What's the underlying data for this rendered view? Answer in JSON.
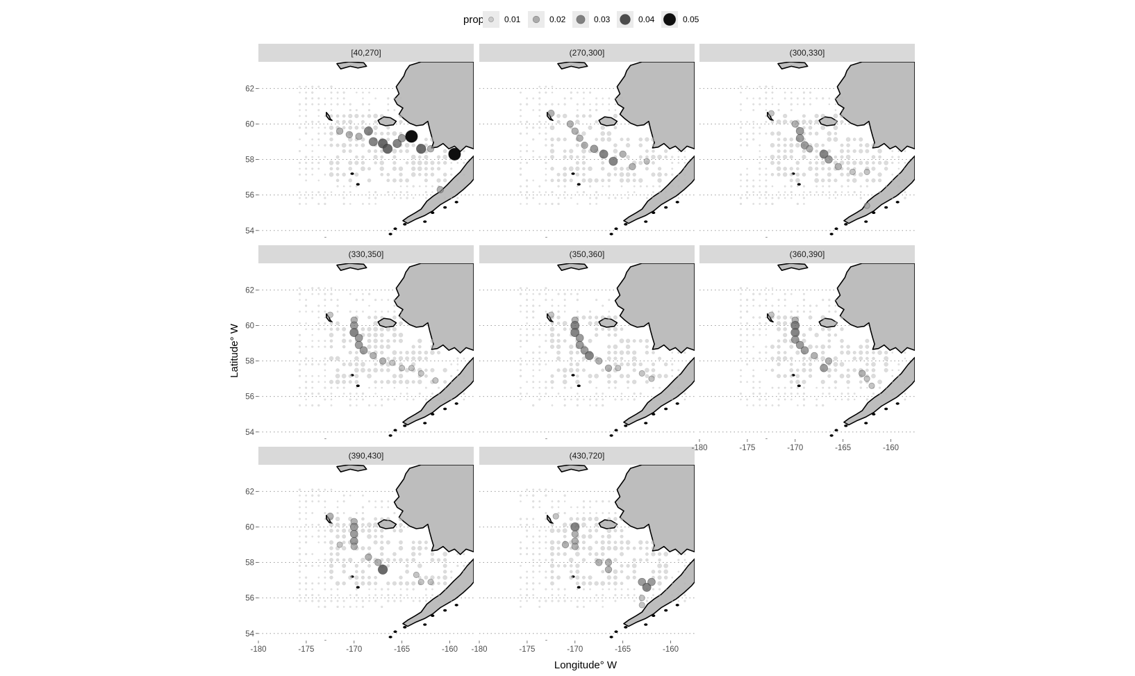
{
  "chart_data": {
    "type": "scatter",
    "subtype": "faceted bubble map",
    "xlabel": "Longitude° W",
    "ylabel": "Latitude° W",
    "x_ticks": [
      -180,
      -175,
      -170,
      -165,
      -160
    ],
    "y_ticks": [
      54,
      56,
      58,
      60,
      62
    ],
    "xlim": [
      -180,
      -157.5
    ],
    "ylim": [
      53.6,
      63.5
    ],
    "grid": "dotted horizontal",
    "legend": {
      "title": "prop",
      "position": "top",
      "values": [
        0.01,
        0.02,
        0.03,
        0.04,
        0.05
      ],
      "labels": [
        "0.01",
        "0.02",
        "0.03",
        "0.04",
        "0.05"
      ]
    },
    "land_color": "#bdbdbd",
    "coast_color": "#000000",
    "facets": [
      {
        "label": "[40,270]",
        "hotspots": [
          {
            "lon": -171.5,
            "lat": 59.6,
            "value": 0.02
          },
          {
            "lon": -170.5,
            "lat": 59.4,
            "value": 0.02
          },
          {
            "lon": -169.5,
            "lat": 59.3,
            "value": 0.02
          },
          {
            "lon": -168.5,
            "lat": 59.6,
            "value": 0.03
          },
          {
            "lon": -168.0,
            "lat": 59.0,
            "value": 0.03
          },
          {
            "lon": -167.0,
            "lat": 58.9,
            "value": 0.035
          },
          {
            "lon": -166.5,
            "lat": 58.6,
            "value": 0.035
          },
          {
            "lon": -165.5,
            "lat": 58.9,
            "value": 0.03
          },
          {
            "lon": -165.0,
            "lat": 59.2,
            "value": 0.025
          },
          {
            "lon": -164.0,
            "lat": 59.3,
            "value": 0.05
          },
          {
            "lon": -163.0,
            "lat": 58.6,
            "value": 0.035
          },
          {
            "lon": -162.0,
            "lat": 58.6,
            "value": 0.02
          },
          {
            "lon": -159.5,
            "lat": 58.3,
            "value": 0.05
          },
          {
            "lon": -161.0,
            "lat": 56.3,
            "value": 0.02
          }
        ]
      },
      {
        "label": "(270,300]",
        "hotspots": [
          {
            "lon": -172.5,
            "lat": 60.6,
            "value": 0.02
          },
          {
            "lon": -170.5,
            "lat": 60.0,
            "value": 0.02
          },
          {
            "lon": -170.0,
            "lat": 59.6,
            "value": 0.02
          },
          {
            "lon": -169.5,
            "lat": 59.2,
            "value": 0.02
          },
          {
            "lon": -169.0,
            "lat": 58.8,
            "value": 0.02
          },
          {
            "lon": -168.0,
            "lat": 58.6,
            "value": 0.025
          },
          {
            "lon": -167.0,
            "lat": 58.3,
            "value": 0.03
          },
          {
            "lon": -166.0,
            "lat": 57.9,
            "value": 0.03
          },
          {
            "lon": -165.0,
            "lat": 58.3,
            "value": 0.02
          },
          {
            "lon": -164.0,
            "lat": 57.6,
            "value": 0.02
          },
          {
            "lon": -162.5,
            "lat": 57.9,
            "value": 0.015
          }
        ]
      },
      {
        "label": "(300,330]",
        "hotspots": [
          {
            "lon": -172.5,
            "lat": 60.6,
            "value": 0.015
          },
          {
            "lon": -170.0,
            "lat": 60.0,
            "value": 0.02
          },
          {
            "lon": -169.5,
            "lat": 59.6,
            "value": 0.025
          },
          {
            "lon": -169.5,
            "lat": 59.2,
            "value": 0.025
          },
          {
            "lon": -169.0,
            "lat": 58.8,
            "value": 0.025
          },
          {
            "lon": -168.5,
            "lat": 58.6,
            "value": 0.02
          },
          {
            "lon": -167.0,
            "lat": 58.3,
            "value": 0.03
          },
          {
            "lon": -166.5,
            "lat": 58.0,
            "value": 0.025
          },
          {
            "lon": -165.5,
            "lat": 57.6,
            "value": 0.02
          },
          {
            "lon": -164.0,
            "lat": 57.3,
            "value": 0.015
          },
          {
            "lon": -162.5,
            "lat": 57.3,
            "value": 0.015
          },
          {
            "lon": -162.5,
            "lat": 55.4,
            "value": 0.015
          }
        ]
      },
      {
        "label": "(330,350]",
        "hotspots": [
          {
            "lon": -172.5,
            "lat": 60.6,
            "value": 0.015
          },
          {
            "lon": -170.0,
            "lat": 60.3,
            "value": 0.02
          },
          {
            "lon": -170.0,
            "lat": 60.0,
            "value": 0.025
          },
          {
            "lon": -170.0,
            "lat": 59.6,
            "value": 0.03
          },
          {
            "lon": -169.5,
            "lat": 59.3,
            "value": 0.025
          },
          {
            "lon": -169.5,
            "lat": 58.9,
            "value": 0.025
          },
          {
            "lon": -169.0,
            "lat": 58.6,
            "value": 0.025
          },
          {
            "lon": -168.0,
            "lat": 58.3,
            "value": 0.02
          },
          {
            "lon": -167.0,
            "lat": 58.0,
            "value": 0.02
          },
          {
            "lon": -166.0,
            "lat": 57.9,
            "value": 0.015
          },
          {
            "lon": -165.0,
            "lat": 57.6,
            "value": 0.015
          },
          {
            "lon": -164.0,
            "lat": 57.6,
            "value": 0.015
          },
          {
            "lon": -163.0,
            "lat": 57.3,
            "value": 0.015
          },
          {
            "lon": -161.5,
            "lat": 56.9,
            "value": 0.015
          }
        ]
      },
      {
        "label": "(350,360]",
        "hotspots": [
          {
            "lon": -172.5,
            "lat": 60.6,
            "value": 0.015
          },
          {
            "lon": -170.0,
            "lat": 60.3,
            "value": 0.02
          },
          {
            "lon": -170.0,
            "lat": 60.0,
            "value": 0.03
          },
          {
            "lon": -170.0,
            "lat": 59.6,
            "value": 0.03
          },
          {
            "lon": -169.5,
            "lat": 59.3,
            "value": 0.025
          },
          {
            "lon": -169.5,
            "lat": 58.9,
            "value": 0.025
          },
          {
            "lon": -169.0,
            "lat": 58.6,
            "value": 0.025
          },
          {
            "lon": -168.5,
            "lat": 58.3,
            "value": 0.03
          },
          {
            "lon": -167.5,
            "lat": 58.0,
            "value": 0.02
          },
          {
            "lon": -166.5,
            "lat": 57.6,
            "value": 0.02
          },
          {
            "lon": -165.5,
            "lat": 57.6,
            "value": 0.015
          },
          {
            "lon": -163.0,
            "lat": 57.3,
            "value": 0.015
          },
          {
            "lon": -162.0,
            "lat": 57.0,
            "value": 0.015
          }
        ]
      },
      {
        "label": "(360,390]",
        "hotspots": [
          {
            "lon": -172.5,
            "lat": 60.6,
            "value": 0.015
          },
          {
            "lon": -170.0,
            "lat": 60.3,
            "value": 0.02
          },
          {
            "lon": -170.0,
            "lat": 60.0,
            "value": 0.03
          },
          {
            "lon": -170.0,
            "lat": 59.6,
            "value": 0.03
          },
          {
            "lon": -170.0,
            "lat": 59.2,
            "value": 0.025
          },
          {
            "lon": -169.5,
            "lat": 58.9,
            "value": 0.025
          },
          {
            "lon": -169.0,
            "lat": 58.6,
            "value": 0.025
          },
          {
            "lon": -168.0,
            "lat": 58.3,
            "value": 0.02
          },
          {
            "lon": -167.0,
            "lat": 57.6,
            "value": 0.025
          },
          {
            "lon": -166.5,
            "lat": 58.0,
            "value": 0.02
          },
          {
            "lon": -163.0,
            "lat": 57.3,
            "value": 0.02
          },
          {
            "lon": -162.5,
            "lat": 57.0,
            "value": 0.015
          },
          {
            "lon": -162.0,
            "lat": 56.6,
            "value": 0.015
          }
        ]
      },
      {
        "label": "(390,430]",
        "hotspots": [
          {
            "lon": -172.5,
            "lat": 60.6,
            "value": 0.02
          },
          {
            "lon": -170.0,
            "lat": 60.3,
            "value": 0.02
          },
          {
            "lon": -170.0,
            "lat": 60.0,
            "value": 0.025
          },
          {
            "lon": -170.0,
            "lat": 59.6,
            "value": 0.025
          },
          {
            "lon": -170.0,
            "lat": 59.2,
            "value": 0.025
          },
          {
            "lon": -170.0,
            "lat": 58.9,
            "value": 0.02
          },
          {
            "lon": -168.5,
            "lat": 58.3,
            "value": 0.02
          },
          {
            "lon": -167.5,
            "lat": 58.0,
            "value": 0.02
          },
          {
            "lon": -167.0,
            "lat": 57.6,
            "value": 0.035
          },
          {
            "lon": -163.5,
            "lat": 57.3,
            "value": 0.015
          },
          {
            "lon": -163.0,
            "lat": 56.9,
            "value": 0.015
          },
          {
            "lon": -162.0,
            "lat": 56.9,
            "value": 0.015
          },
          {
            "lon": -171.5,
            "lat": 59.0,
            "value": 0.015
          }
        ]
      },
      {
        "label": "(430,720]",
        "hotspots": [
          {
            "lon": -170.0,
            "lat": 60.0,
            "value": 0.03
          },
          {
            "lon": -170.0,
            "lat": 59.6,
            "value": 0.02
          },
          {
            "lon": -170.0,
            "lat": 59.2,
            "value": 0.02
          },
          {
            "lon": -170.0,
            "lat": 58.9,
            "value": 0.02
          },
          {
            "lon": -171.0,
            "lat": 59.0,
            "value": 0.02
          },
          {
            "lon": -172.0,
            "lat": 60.6,
            "value": 0.015
          },
          {
            "lon": -167.5,
            "lat": 58.0,
            "value": 0.02
          },
          {
            "lon": -166.5,
            "lat": 58.0,
            "value": 0.02
          },
          {
            "lon": -166.5,
            "lat": 57.6,
            "value": 0.02
          },
          {
            "lon": -163.0,
            "lat": 56.9,
            "value": 0.025
          },
          {
            "lon": -162.5,
            "lat": 56.6,
            "value": 0.03
          },
          {
            "lon": -162.0,
            "lat": 56.9,
            "value": 0.025
          },
          {
            "lon": -163.0,
            "lat": 56.0,
            "value": 0.015
          },
          {
            "lon": -163.0,
            "lat": 55.6,
            "value": 0.015
          }
        ]
      }
    ]
  }
}
